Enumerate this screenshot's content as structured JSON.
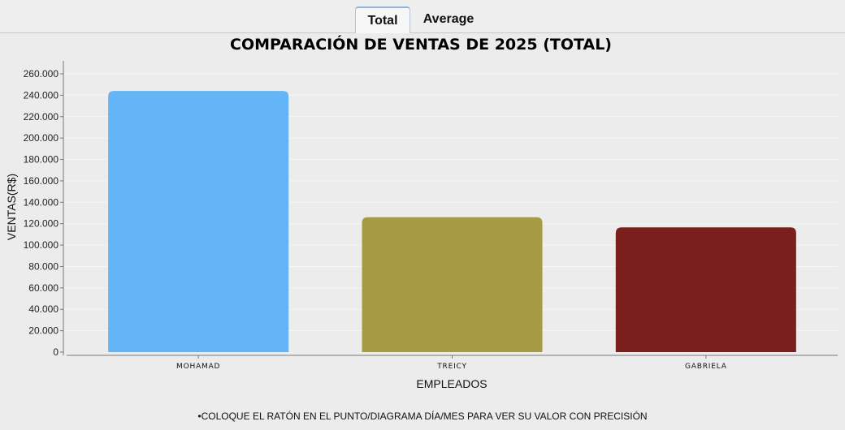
{
  "tabs": [
    {
      "label": "Total",
      "active": true
    },
    {
      "label": "Average",
      "active": false
    }
  ],
  "chart_data": {
    "type": "bar",
    "title": "COMPARACIÓN DE VENTAS DE 2025 (TOTAL)",
    "xlabel": "EMPLEADOS",
    "ylabel": "VENTAS(R$)",
    "categories": [
      "MOHAMAD",
      "TREICY",
      "GABRIELA"
    ],
    "values": [
      244000,
      126000,
      116500
    ],
    "colors": [
      "#63b5f7",
      "#a69a42",
      "#7b1f1c"
    ],
    "ylim": [
      0,
      270000
    ],
    "yticks": [
      "0",
      "20.000",
      "40.000",
      "60.000",
      "80.000",
      "100.000",
      "120.000",
      "140.000",
      "160.000",
      "180.000",
      "200.000",
      "220.000",
      "240.000",
      "260.000"
    ],
    "ytick_values": [
      0,
      20000,
      40000,
      60000,
      80000,
      100000,
      120000,
      140000,
      160000,
      180000,
      200000,
      220000,
      240000,
      260000
    ],
    "grid": true,
    "legend": "none"
  },
  "footnote": "•COLOQUE EL RATÓN EN EL PUNTO/DIAGRAMA DÍA/MES PARA VER SU VALOR CON PRECISIÓN"
}
